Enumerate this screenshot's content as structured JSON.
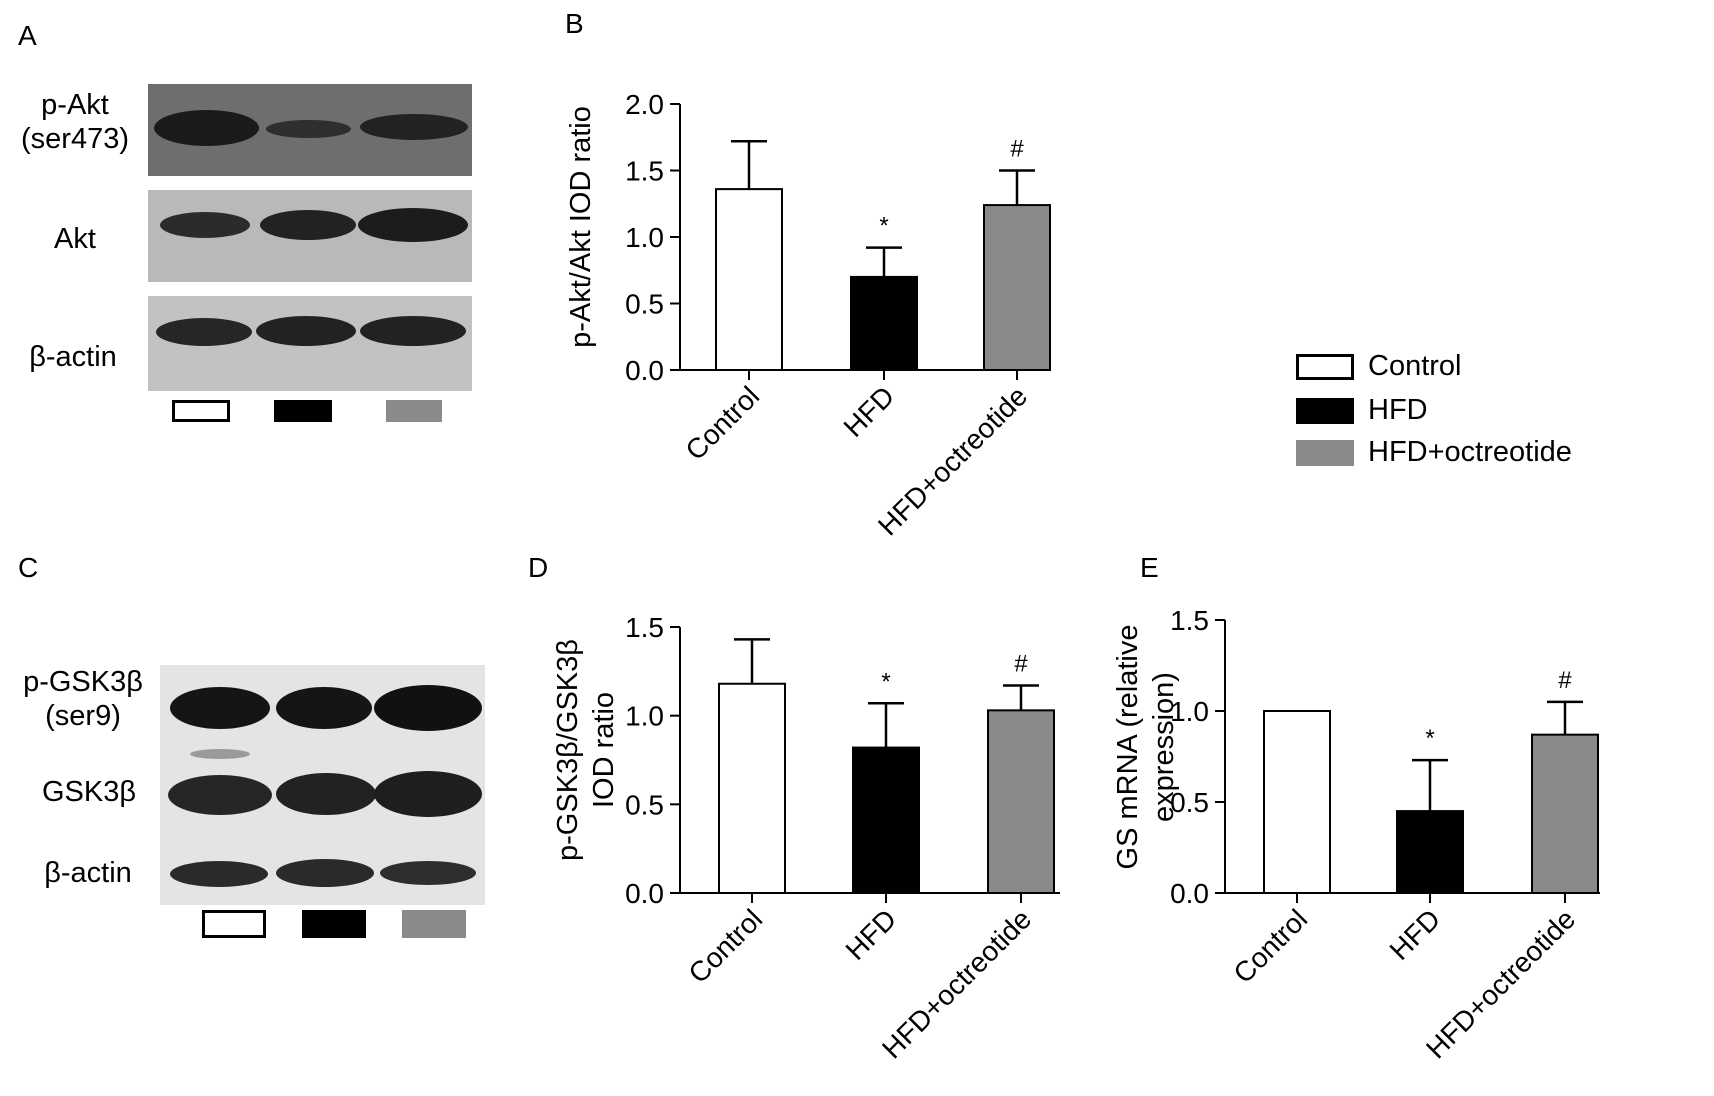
{
  "panels": {
    "A": "A",
    "B": "B",
    "C": "C",
    "D": "D",
    "E": "E"
  },
  "colors": {
    "control": "#ffffff",
    "hfd": "#000000",
    "hfd_octreotide": "#8a8a8a"
  },
  "blotA": {
    "labels": {
      "pakt_line1": "p-Akt",
      "pakt_line2": "(ser473)",
      "akt": "Akt",
      "actin": "β-actin"
    }
  },
  "blotC": {
    "labels": {
      "pgsk_line1": "p-GSK3β",
      "pgsk_line2": "(ser9)",
      "gsk": "GSK3β",
      "actin": "β-actin"
    }
  },
  "legend": {
    "items": [
      "Control",
      "HFD",
      "HFD+octreotide"
    ]
  },
  "chart_data": [
    {
      "panel": "B",
      "type": "bar",
      "categories": [
        "Control",
        "HFD",
        "HFD+octreotide"
      ],
      "values": [
        1.36,
        0.7,
        1.24
      ],
      "errors": [
        0.36,
        0.22,
        0.26
      ],
      "annotations": [
        "",
        "*",
        "#"
      ],
      "ylabel": "p-Akt/Akt IOD ratio",
      "ylim": [
        0,
        2.0
      ],
      "yticks": [
        "0.0",
        "0.5",
        "1.0",
        "1.5",
        "2.0"
      ]
    },
    {
      "panel": "D",
      "type": "bar",
      "categories": [
        "Control",
        "HFD",
        "HFD+octreotide"
      ],
      "values": [
        1.18,
        0.82,
        1.03
      ],
      "errors": [
        0.25,
        0.25,
        0.14
      ],
      "annotations": [
        "",
        "*",
        "#"
      ],
      "ylabel_lines": [
        "p-GSK3β/GSK3β",
        "IOD ratio"
      ],
      "ylim": [
        0,
        1.5
      ],
      "yticks": [
        "0.0",
        "0.5",
        "1.0",
        "1.5"
      ]
    },
    {
      "panel": "E",
      "type": "bar",
      "categories": [
        "Control",
        "HFD",
        "HFD+octreotide"
      ],
      "values": [
        1.0,
        0.45,
        0.87
      ],
      "errors": [
        0.0,
        0.28,
        0.18
      ],
      "annotations": [
        "",
        "*",
        "#"
      ],
      "ylabel_lines": [
        "GS mRNA (relative",
        "expression)"
      ],
      "ylim": [
        0,
        1.5
      ],
      "yticks": [
        "0.0",
        "0.5",
        "1.0",
        "1.5"
      ]
    }
  ]
}
